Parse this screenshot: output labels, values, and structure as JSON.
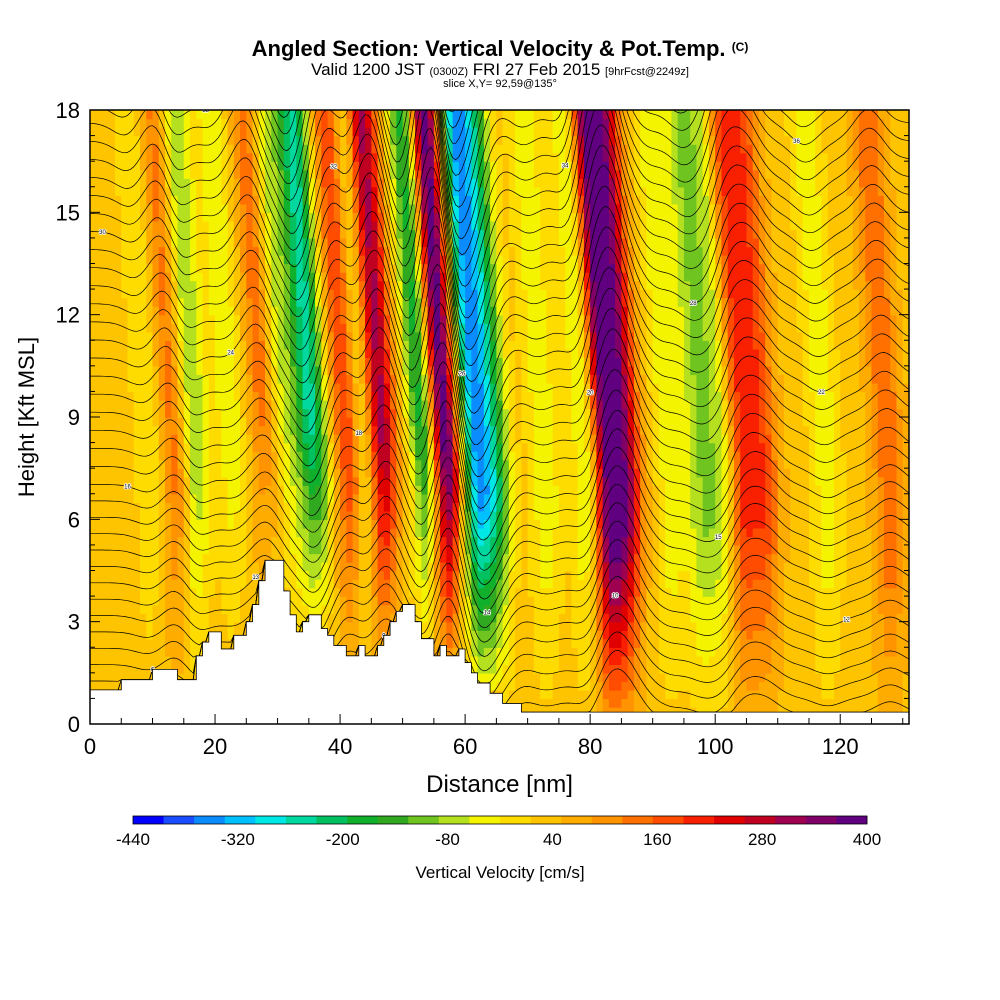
{
  "header": {
    "title": "Angled Section: Vertical Velocity & Pot.Temp.",
    "title_unit": "(C)",
    "valid_prefix": "Valid 1200 JST",
    "valid_utc": "(0300Z)",
    "valid_date": "FRI 27 Feb 2015",
    "forecast": "[9hrFcst@2249z]",
    "slice": "slice X,Y= 92,59@135°"
  },
  "chart_data": {
    "type": "heatmap",
    "xlabel": "Distance [nm]",
    "ylabel": "Height [Kft MSL]",
    "xlim": [
      0,
      131
    ],
    "ylim": [
      0,
      18
    ],
    "x_ticks": [
      0,
      20,
      40,
      60,
      80,
      100,
      120
    ],
    "y_ticks": [
      0,
      3,
      6,
      9,
      12,
      15,
      18
    ],
    "terrain": [
      [
        0,
        1
      ],
      [
        5,
        1
      ],
      [
        5,
        1.3
      ],
      [
        10,
        1.3
      ],
      [
        10,
        1.6
      ],
      [
        14,
        1.6
      ],
      [
        14,
        1.3
      ],
      [
        17,
        1.3
      ],
      [
        17,
        2
      ],
      [
        18,
        2
      ],
      [
        18,
        2.4
      ],
      [
        19,
        2.4
      ],
      [
        19,
        2.7
      ],
      [
        21,
        2.7
      ],
      [
        21,
        2.2
      ],
      [
        23,
        2.2
      ],
      [
        23,
        2.6
      ],
      [
        25,
        2.6
      ],
      [
        25,
        3
      ],
      [
        26,
        3
      ],
      [
        26,
        3.5
      ],
      [
        27,
        3.5
      ],
      [
        27,
        4.2
      ],
      [
        28,
        4.2
      ],
      [
        28,
        4.8
      ],
      [
        31,
        4.8
      ],
      [
        31,
        3.9
      ],
      [
        32,
        3.9
      ],
      [
        32,
        3.2
      ],
      [
        33,
        3.2
      ],
      [
        33,
        2.7
      ],
      [
        34,
        2.7
      ],
      [
        34,
        3
      ],
      [
        35,
        3
      ],
      [
        35,
        3.2
      ],
      [
        37,
        3.2
      ],
      [
        37,
        2.8
      ],
      [
        38,
        2.8
      ],
      [
        38,
        2.6
      ],
      [
        39,
        2.6
      ],
      [
        39,
        2.3
      ],
      [
        41,
        2.3
      ],
      [
        41,
        2
      ],
      [
        43,
        2
      ],
      [
        43,
        2.3
      ],
      [
        44,
        2.3
      ],
      [
        44,
        2
      ],
      [
        46,
        2
      ],
      [
        46,
        2.3
      ],
      [
        47,
        2.3
      ],
      [
        47,
        2.6
      ],
      [
        48,
        2.6
      ],
      [
        48,
        3
      ],
      [
        49,
        3
      ],
      [
        49,
        3.3
      ],
      [
        50,
        3.3
      ],
      [
        50,
        3.5
      ],
      [
        52,
        3.5
      ],
      [
        52,
        3
      ],
      [
        53,
        3
      ],
      [
        53,
        2.5
      ],
      [
        55,
        2.5
      ],
      [
        55,
        2
      ],
      [
        56,
        2
      ],
      [
        56,
        2.3
      ],
      [
        57,
        2.3
      ],
      [
        57,
        2
      ],
      [
        59,
        2
      ],
      [
        59,
        2.2
      ],
      [
        60,
        2.2
      ],
      [
        60,
        1.8
      ],
      [
        61,
        1.8
      ],
      [
        61,
        1.5
      ],
      [
        62,
        1.5
      ],
      [
        62,
        1.2
      ],
      [
        64,
        1.2
      ],
      [
        64,
        0.9
      ],
      [
        66,
        0.9
      ],
      [
        66,
        0.6
      ],
      [
        69,
        0.6
      ],
      [
        69,
        0.35
      ],
      [
        131,
        0.35
      ]
    ],
    "colorbar": {
      "label": "Vertical Velocity [cm/s]",
      "tick_labels": [
        "-440",
        "-320",
        "-200",
        "-80",
        "40",
        "160",
        "280",
        "400"
      ],
      "min": -440,
      "max": 400,
      "colors": [
        "#0000ff",
        "#1a4dff",
        "#0a8cff",
        "#00c0ff",
        "#00e8e6",
        "#00d8a0",
        "#00c060",
        "#10b02c",
        "#30a820",
        "#70c420",
        "#b4e020",
        "#f4f400",
        "#ffdc00",
        "#ffc400",
        "#ffac00",
        "#ff9400",
        "#ff7000",
        "#ff4c00",
        "#f82000",
        "#e00000",
        "#c00020",
        "#a00050",
        "#800068",
        "#600080"
      ]
    },
    "updrafts": [
      [
        14,
        120
      ],
      [
        29,
        160
      ],
      [
        42,
        220
      ],
      [
        47,
        300
      ],
      [
        57,
        400
      ],
      [
        83,
        340
      ],
      [
        86,
        240
      ],
      [
        104,
        200
      ],
      [
        108,
        140
      ],
      [
        128,
        120
      ]
    ],
    "downdrafts": [
      [
        10,
        -60
      ],
      [
        17,
        -140
      ],
      [
        23,
        -80
      ],
      [
        31,
        -150
      ],
      [
        36,
        -280
      ],
      [
        44,
        -180
      ],
      [
        54,
        -260
      ],
      [
        62,
        -340
      ],
      [
        65,
        -200
      ],
      [
        73,
        -80
      ],
      [
        80,
        -120
      ],
      [
        93,
        -80
      ],
      [
        98,
        -120
      ],
      [
        102,
        -150
      ],
      [
        118,
        -80
      ]
    ],
    "isentropes": {
      "style": "thin black contour lines of potential temperature",
      "labels": [
        "6",
        "9",
        "10",
        "12",
        "13",
        "14",
        "15",
        "16",
        "18",
        "20",
        "22",
        "24",
        "26",
        "28",
        "30",
        "32",
        "34",
        "36",
        "38",
        "40",
        "42",
        "44",
        "46",
        "48",
        "50",
        "52",
        "54",
        "56",
        "58",
        "60",
        "62",
        "64",
        "66",
        "68",
        "70",
        "72",
        "74",
        "76"
      ]
    }
  }
}
